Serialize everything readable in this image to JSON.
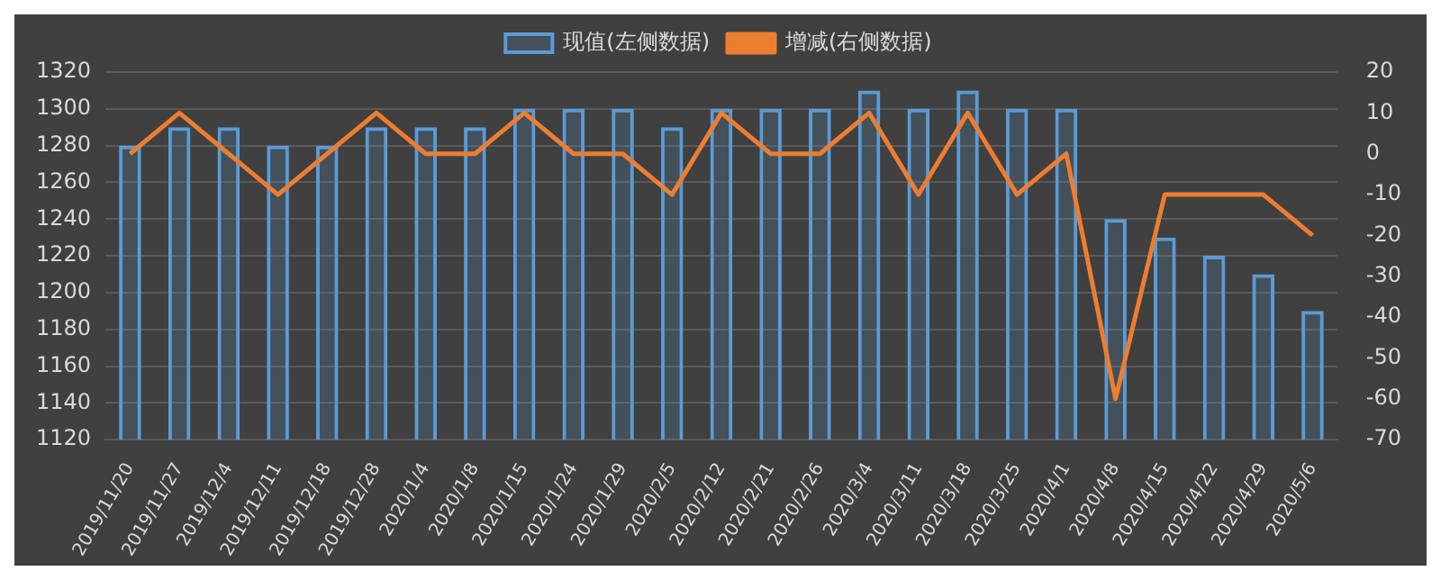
{
  "chart_data": {
    "type": "bar",
    "categories": [
      "2019/11/20",
      "2019/11/27",
      "2019/12/4",
      "2019/12/11",
      "2019/12/18",
      "2019/12/28",
      "2020/1/4",
      "2020/1/8",
      "2020/1/15",
      "2020/1/24",
      "2020/1/29",
      "2020/2/5",
      "2020/2/12",
      "2020/2/21",
      "2020/2/26",
      "2020/3/4",
      "2020/3/11",
      "2020/3/18",
      "2020/3/25",
      "2020/4/1",
      "2020/4/8",
      "2020/4/15",
      "2020/4/22",
      "2020/4/29",
      "2020/5/6"
    ],
    "series": [
      {
        "name": "现值(左侧数据)",
        "color": "#5b9bd5",
        "values": [
          1280,
          1290,
          1290,
          1280,
          1280,
          1290,
          1290,
          1290,
          1300,
          1300,
          1300,
          1290,
          1300,
          1300,
          1300,
          1310,
          1300,
          1310,
          1300,
          1300,
          1240,
          1230,
          1220,
          1210,
          1190
        ]
      },
      {
        "name": "增减(右侧数据)",
        "type": "line",
        "axis": "y2",
        "color": "#ed7d31",
        "values": [
          0,
          10,
          0,
          -10,
          0,
          10,
          0,
          0,
          10,
          0,
          0,
          -10,
          10,
          0,
          0,
          10,
          -10,
          10,
          -10,
          0,
          -60,
          -10,
          -10,
          -10,
          -20
        ]
      }
    ],
    "ylim": [
      1120,
      1320
    ],
    "yticks": [
      1120,
      1140,
      1160,
      1180,
      1200,
      1220,
      1240,
      1260,
      1280,
      1300,
      1320
    ],
    "y2lim": [
      -70,
      20
    ],
    "y2ticks": [
      -70,
      -60,
      -50,
      -40,
      -30,
      -20,
      -10,
      0,
      10,
      20
    ],
    "grid": "y",
    "legend": "top",
    "marker": "none",
    "line_style": "solid"
  }
}
